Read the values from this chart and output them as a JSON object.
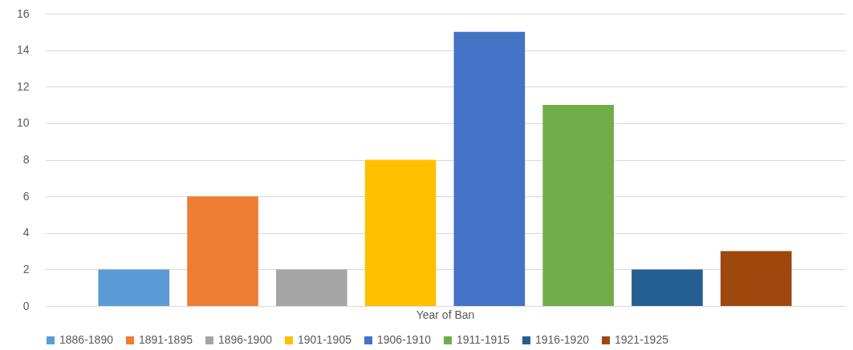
{
  "chart_data": {
    "type": "bar",
    "xlabel": "Year of Ban",
    "categories": [
      null
    ],
    "series": [
      {
        "name": "1886-1890",
        "color": "#5b9bd5",
        "values": [
          2
        ]
      },
      {
        "name": "1891-1895",
        "color": "#ed7d31",
        "values": [
          6
        ]
      },
      {
        "name": "1896-1900",
        "color": "#a5a5a5",
        "values": [
          2
        ]
      },
      {
        "name": "1901-1905",
        "color": "#ffc000",
        "values": [
          8
        ]
      },
      {
        "name": "1906-1910",
        "color": "#4472c4",
        "values": [
          15
        ]
      },
      {
        "name": "1911-1915",
        "color": "#70ad47",
        "values": [
          11
        ]
      },
      {
        "name": "1916-1920",
        "color": "#255e91",
        "values": [
          2
        ]
      },
      {
        "name": "1921-1925",
        "color": "#9e480e",
        "values": [
          3
        ]
      }
    ],
    "ylim": [
      0,
      16
    ],
    "yticks": [
      0,
      2,
      4,
      6,
      8,
      10,
      12,
      14,
      16
    ],
    "grid": "y",
    "legend": "bottom"
  }
}
